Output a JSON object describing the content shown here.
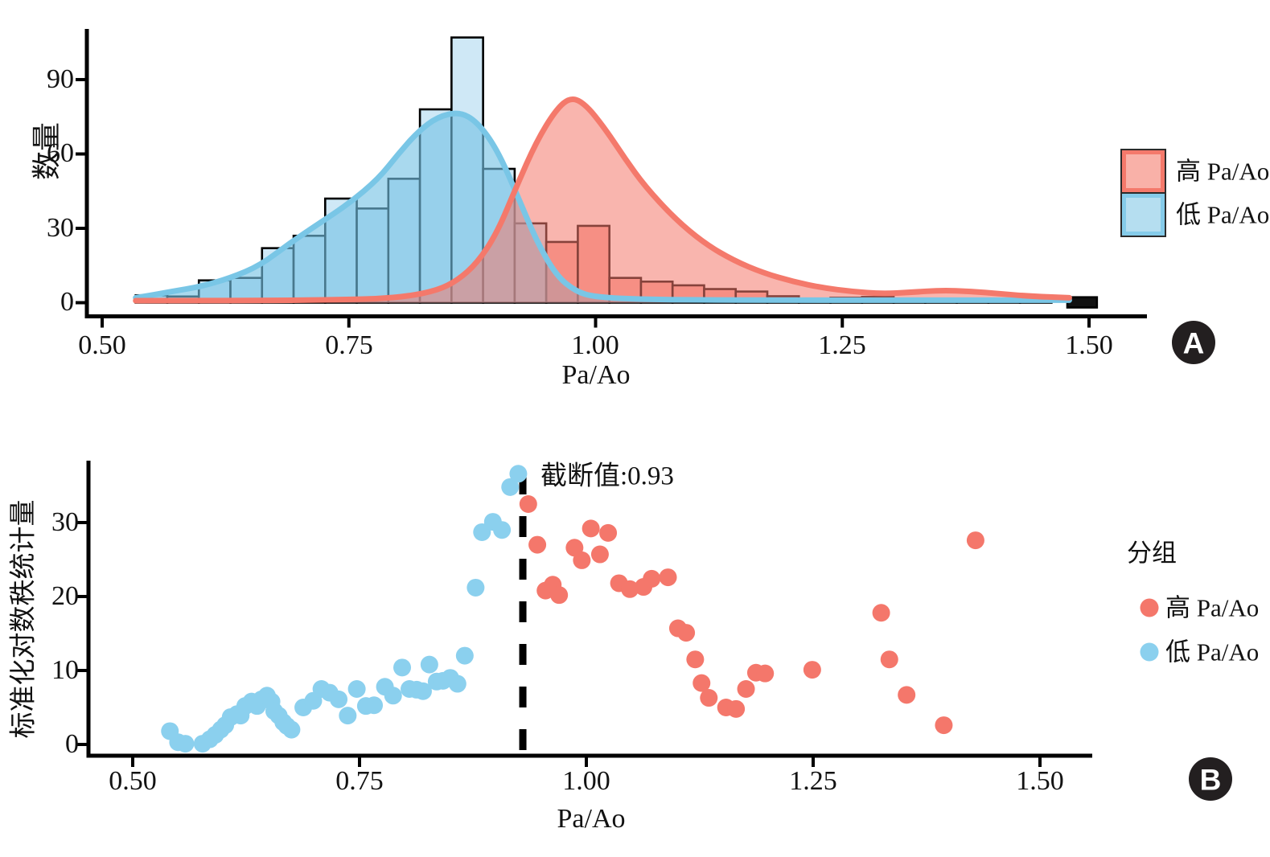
{
  "chart_data": [
    {
      "id": "panel-a",
      "type": "histogram+density",
      "panel_marker": "A",
      "xlabel": "Pa/Ao",
      "ylabel": "数量",
      "xlim": [
        0.47,
        1.56
      ],
      "ylim": [
        0,
        110
      ],
      "xticks": [
        {
          "v": 0.5,
          "label": "0.50"
        },
        {
          "v": 0.75,
          "label": "0.75"
        },
        {
          "v": 1.0,
          "label": "1.00"
        },
        {
          "v": 1.25,
          "label": "1.25"
        },
        {
          "v": 1.5,
          "label": "1.50"
        }
      ],
      "yticks": [
        {
          "v": 0,
          "label": "0"
        },
        {
          "v": 30,
          "label": "30"
        },
        {
          "v": 60,
          "label": "60"
        },
        {
          "v": 90,
          "label": "90"
        }
      ],
      "bin_width": 0.032,
      "histogram": [
        {
          "name": "低 Pa/Ao",
          "bar_fill": "#cfe8f6",
          "bar_stroke": "#000000",
          "bars": [
            [
              0.534,
              3
            ],
            [
              0.566,
              2.5
            ],
            [
              0.598,
              9
            ],
            [
              0.63,
              10
            ],
            [
              0.662,
              22
            ],
            [
              0.694,
              27
            ],
            [
              0.726,
              42
            ],
            [
              0.758,
              38
            ],
            [
              0.79,
              50
            ],
            [
              0.822,
              78
            ],
            [
              0.854,
              107
            ],
            [
              0.886,
              54
            ],
            [
              0.918,
              32
            ]
          ]
        },
        {
          "name": "高 Pa/Ao",
          "bar_fill": "#f9aca2",
          "bar_stroke": "#000000",
          "bars": [
            [
              0.95,
              24.5
            ],
            [
              0.982,
              31
            ],
            [
              1.014,
              10
            ],
            [
              1.046,
              8.5
            ],
            [
              1.078,
              7
            ],
            [
              1.11,
              5.5
            ],
            [
              1.142,
              4.5
            ],
            [
              1.174,
              2.6
            ],
            [
              1.206,
              0.6
            ],
            [
              1.238,
              2
            ],
            [
              1.27,
              2.3
            ],
            [
              1.302,
              1
            ],
            [
              1.334,
              1
            ],
            [
              1.366,
              1
            ],
            [
              1.398,
              1
            ],
            [
              1.43,
              0.8
            ]
          ]
        },
        {
          "name": "离群黑条",
          "bar_fill": "#111111",
          "bar_stroke": "#000000",
          "bar_width": 0.03,
          "extend_below": 6,
          "bars": [
            [
              1.478,
              2.2
            ]
          ]
        }
      ],
      "density": [
        {
          "name": "低 Pa/Ao",
          "stroke": "#79c6e6",
          "fill": "rgba(117,194,228,0.62)",
          "points": [
            [
              0.534,
              2
            ],
            [
              0.55,
              3
            ],
            [
              0.57,
              4.5
            ],
            [
              0.6,
              6.5
            ],
            [
              0.63,
              10
            ],
            [
              0.66,
              15
            ],
            [
              0.69,
              24
            ],
            [
              0.72,
              32
            ],
            [
              0.75,
              40
            ],
            [
              0.78,
              50
            ],
            [
              0.8,
              60
            ],
            [
              0.82,
              69
            ],
            [
              0.84,
              75
            ],
            [
              0.862,
              77
            ],
            [
              0.88,
              73
            ],
            [
              0.9,
              62
            ],
            [
              0.92,
              44
            ],
            [
              0.94,
              25
            ],
            [
              0.96,
              11
            ],
            [
              0.98,
              4.5
            ],
            [
              1.0,
              2.2
            ],
            [
              1.05,
              1.3
            ],
            [
              1.1,
              1.1
            ],
            [
              1.2,
              1.0
            ],
            [
              1.3,
              1.0
            ],
            [
              1.4,
              1.0
            ],
            [
              1.48,
              1.0
            ]
          ]
        },
        {
          "name": "高 Pa/Ao",
          "stroke": "#f4796b",
          "fill": "rgba(244,121,107,0.55)",
          "points": [
            [
              0.534,
              0.8
            ],
            [
              0.6,
              0.8
            ],
            [
              0.65,
              0.9
            ],
            [
              0.7,
              1.0
            ],
            [
              0.75,
              1.3
            ],
            [
              0.78,
              1.6
            ],
            [
              0.81,
              2.6
            ],
            [
              0.84,
              5
            ],
            [
              0.86,
              9
            ],
            [
              0.88,
              16
            ],
            [
              0.9,
              28
            ],
            [
              0.92,
              47
            ],
            [
              0.94,
              65
            ],
            [
              0.96,
              78
            ],
            [
              0.975,
              83
            ],
            [
              0.99,
              80
            ],
            [
              1.01,
              70
            ],
            [
              1.03,
              58
            ],
            [
              1.05,
              47
            ],
            [
              1.08,
              34
            ],
            [
              1.11,
              24
            ],
            [
              1.14,
              17
            ],
            [
              1.17,
              12
            ],
            [
              1.2,
              8.5
            ],
            [
              1.23,
              6
            ],
            [
              1.26,
              4.5
            ],
            [
              1.29,
              3.6
            ],
            [
              1.32,
              4.2
            ],
            [
              1.35,
              5
            ],
            [
              1.38,
              4.6
            ],
            [
              1.41,
              3.6
            ],
            [
              1.44,
              2.6
            ],
            [
              1.48,
              2
            ]
          ]
        }
      ],
      "legend": {
        "items": [
          {
            "label": "高 Pa/Ao",
            "stroke": "#f4796b",
            "fill": "#f9b1a8"
          },
          {
            "label": "低 Pa/Ao",
            "stroke": "#85cbe9",
            "fill": "#b5def0"
          }
        ]
      }
    },
    {
      "id": "panel-b",
      "type": "scatter",
      "panel_marker": "B",
      "xlabel": "Pa/Ao",
      "ylabel": "标准化对数秩统计量",
      "xlim": [
        0.45,
        1.55
      ],
      "ylim": [
        0,
        38
      ],
      "xticks": [
        {
          "v": 0.5,
          "label": "0.50"
        },
        {
          "v": 0.75,
          "label": "0.75"
        },
        {
          "v": 1.0,
          "label": "1.00"
        },
        {
          "v": 1.25,
          "label": "1.25"
        },
        {
          "v": 1.5,
          "label": "1.50"
        }
      ],
      "yticks": [
        {
          "v": 0,
          "label": "0"
        },
        {
          "v": 10,
          "label": "10"
        },
        {
          "v": 20,
          "label": "20"
        },
        {
          "v": 30,
          "label": "30"
        }
      ],
      "cutoff": {
        "x": 0.93,
        "label": "截断值:0.93"
      },
      "legend": {
        "title": "分组",
        "items": [
          {
            "label": "高 Pa/Ao",
            "color": "#f4776b"
          },
          {
            "label": "低 Pa/Ao",
            "color": "#8bd0ee"
          }
        ]
      },
      "series": [
        {
          "name": "低 Pa/Ao",
          "color": "#8bd0ee",
          "points": [
            [
              0.541,
              1.8
            ],
            [
              0.55,
              0.3
            ],
            [
              0.558,
              0.1
            ],
            [
              0.577,
              0.1
            ],
            [
              0.585,
              0.7
            ],
            [
              0.591,
              1.3
            ],
            [
              0.597,
              2.0
            ],
            [
              0.602,
              2.6
            ],
            [
              0.608,
              3.7
            ],
            [
              0.615,
              4.1
            ],
            [
              0.619,
              3.9
            ],
            [
              0.624,
              5.2
            ],
            [
              0.631,
              5.8
            ],
            [
              0.637,
              5.2
            ],
            [
              0.642,
              6.1
            ],
            [
              0.648,
              6.6
            ],
            [
              0.653,
              5.8
            ],
            [
              0.656,
              4.5
            ],
            [
              0.661,
              3.9
            ],
            [
              0.666,
              3.0
            ],
            [
              0.67,
              2.5
            ],
            [
              0.675,
              2.0
            ],
            [
              0.688,
              5.0
            ],
            [
              0.699,
              5.9
            ],
            [
              0.708,
              7.5
            ],
            [
              0.717,
              7.0
            ],
            [
              0.727,
              6.1
            ],
            [
              0.737,
              3.9
            ],
            [
              0.747,
              7.5
            ],
            [
              0.757,
              5.2
            ],
            [
              0.766,
              5.3
            ],
            [
              0.778,
              7.8
            ],
            [
              0.787,
              6.6
            ],
            [
              0.797,
              10.4
            ],
            [
              0.805,
              7.5
            ],
            [
              0.813,
              7.4
            ],
            [
              0.82,
              7.2
            ],
            [
              0.827,
              10.8
            ],
            [
              0.835,
              8.5
            ],
            [
              0.842,
              8.6
            ],
            [
              0.85,
              9.0
            ],
            [
              0.858,
              8.2
            ],
            [
              0.866,
              12.0
            ],
            [
              0.878,
              21.2
            ],
            [
              0.885,
              28.7
            ],
            [
              0.897,
              30.1
            ],
            [
              0.907,
              29.0
            ],
            [
              0.916,
              34.8
            ],
            [
              0.925,
              36.6
            ]
          ]
        },
        {
          "name": "高 Pa/Ao",
          "color": "#f4776b",
          "points": [
            [
              0.936,
              32.5
            ],
            [
              0.946,
              27.0
            ],
            [
              0.955,
              20.8
            ],
            [
              0.963,
              21.6
            ],
            [
              0.97,
              20.2
            ],
            [
              0.987,
              26.6
            ],
            [
              0.995,
              24.9
            ],
            [
              1.005,
              29.2
            ],
            [
              1.015,
              25.7
            ],
            [
              1.024,
              28.6
            ],
            [
              1.036,
              21.8
            ],
            [
              1.048,
              21.0
            ],
            [
              1.063,
              21.3
            ],
            [
              1.072,
              22.4
            ],
            [
              1.09,
              22.6
            ],
            [
              1.101,
              15.7
            ],
            [
              1.11,
              15.1
            ],
            [
              1.12,
              11.5
            ],
            [
              1.127,
              8.3
            ],
            [
              1.135,
              6.3
            ],
            [
              1.154,
              5.0
            ],
            [
              1.165,
              4.8
            ],
            [
              1.176,
              7.5
            ],
            [
              1.187,
              9.7
            ],
            [
              1.197,
              9.6
            ],
            [
              1.249,
              10.1
            ],
            [
              1.325,
              17.8
            ],
            [
              1.334,
              11.5
            ],
            [
              1.353,
              6.7
            ],
            [
              1.394,
              2.6
            ],
            [
              1.429,
              27.6
            ]
          ]
        }
      ]
    }
  ],
  "colors": {
    "axis": "#000000",
    "marker_circle": "#231f20",
    "cutoff_line": "#000000"
  }
}
